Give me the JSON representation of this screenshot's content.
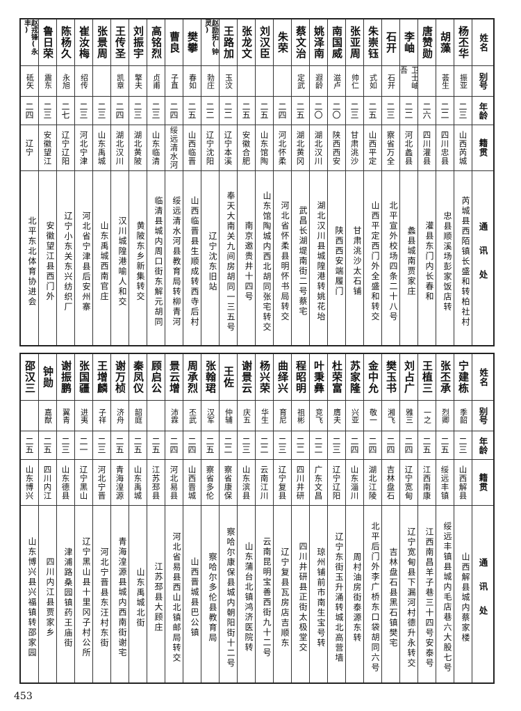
{
  "header": {
    "name": "姓名",
    "alias": "别号",
    "age": "年龄",
    "native": "籍贯",
    "address": "通讯处"
  },
  "top_rows": [
    [
      "杨丕华",
      "振亚",
      "二三",
      "山西芮城",
      "芮城县西陌镇长盛和转柏社村"
    ],
    [
      "胡藻",
      "荟生",
      "二二",
      "四川忠县",
      "忠县顺溪场彭家饭店转"
    ],
    [
      "唐赞勋",
      "",
      "二六",
      "四川灌县",
      "灌县东门内长春和"
    ],
    [
      "李岫",
      "卫士岫吾",
      "二二",
      "河北蠡县",
      "蠡县城南贾家庄"
    ],
    [
      "石开",
      "石开",
      "二三",
      "察省万全",
      "北平宣外校场四条二十八号"
    ],
    [
      "朱崇钰",
      "式如",
      "二五",
      "山西平定",
      "山西平定西门外全盛和转交"
    ],
    [
      "张亚周",
      "帅仁",
      "二三",
      "甘肃洮沙",
      "甘肃洮沙太石铺"
    ],
    [
      "南国威",
      "滋卢",
      "二〇",
      "陕西西安",
      "陕西西安端履门"
    ],
    [
      "姚泽南",
      "遐龄",
      "二〇",
      "湖北汉川",
      "湖北汉川县城隍港转姚花坮"
    ],
    [
      "蔡文治",
      "定武",
      "二五",
      "湖北黄冈",
      "武昌长湖堤南街二号蔡宅"
    ],
    [
      "朱荣",
      "",
      "二四",
      "河北怀柔",
      "河北省怀柔县明怀书局转交"
    ],
    [
      "刘汉臣",
      "",
      "二五",
      "山东馆陶",
      "山东馆陶城内西北胡同张宅转交"
    ],
    [
      "张龙文",
      "",
      "二五",
      "安徽合肥",
      "南京邀贵井十四号"
    ],
    [
      "王路加",
      "玉汶",
      "二二",
      "辽宁本溪",
      "奉天大南关九间房胡同一三五号"
    ],
    [
      "赵励拓(钟灵)",
      "勃庄",
      "二二",
      "辽宁沈阳",
      "辽宁沈东旧站"
    ],
    [
      "樊攀",
      "春如",
      "二五",
      "山西临晋",
      "山西临晋县生顺成转西寺后村"
    ],
    [
      "曹良",
      "子直",
      "二四",
      "绥远清水河",
      "绥远清水河县教育局转柳青河"
    ],
    [
      "高铭烈",
      "贞甫",
      "二三",
      "山东临清",
      "临清县城内周口街东解元胡同"
    ],
    [
      "刘振宇",
      "擎夫",
      "二三",
      "湖北黄陂",
      "黄陂东乡新集转交"
    ],
    [
      "王传圣",
      "凯章",
      "二四",
      "湖北汉川",
      "汉川城隍港喻人和交"
    ],
    [
      "张景周",
      "",
      "二三",
      "山东禹城",
      "山东禹城西南官庄"
    ],
    [
      "崔汝梅",
      "绍传",
      "二三",
      "河北宁津",
      "河北省宁津县后安州寨"
    ],
    [
      "陈杨久",
      "永旭",
      "二七",
      "辽宁辽阳",
      "辽宁小东关东兴纺织厂"
    ],
    [
      "鲁日荣",
      "震东",
      "二三",
      "安徽望江",
      "安徽望江县西门外"
    ],
    [
      "赵戎锋(永丰)",
      "砥矢",
      "二四",
      "辽宁",
      "北平东北体育协进会"
    ]
  ],
  "bottom_rows": [
    [
      "宁建栋",
      "季韶",
      "二三",
      "山西解县",
      "山西解县城内蔡家楼"
    ],
    [
      "张丕承",
      "烈卿",
      "二五",
      "绥远丰镇",
      "绥远丰镇县城内毛店巷六大股七号"
    ],
    [
      "王植三",
      "一之",
      "二五",
      "江西南康",
      "江西南昌羊子巷三十四号安泰号"
    ],
    [
      "刘占广",
      "雅三",
      "二四",
      "辽宁宽甸",
      "辽宁宽甸县下漏河村德升永转交"
    ],
    [
      "樊玉书",
      "湘飞",
      "二四",
      "吉林盘石",
      "吉林盘石县黑石镇樊宅"
    ],
    [
      "金中允",
      "敬一",
      "二四",
      "湖北江陵",
      "北平后门外李广桥东口袋胡同六号"
    ],
    [
      "苏家隆",
      "兴亚",
      "二四",
      "山东淄川",
      "周村油房街泰源东转"
    ],
    [
      "杜荣富",
      "膺夫",
      "二三",
      "辽宁辽阳",
      "辽宁东街玉升涌转城北高营墙"
    ],
    [
      "叶秉彝",
      "竞飞",
      "二二",
      "广东文昌",
      "琼州铺前市南生宝号转"
    ],
    [
      "程昭明",
      "祖彬",
      "二二",
      "四川井研",
      "四川井研县正街太极堂交"
    ],
    [
      "曲绎兴",
      "育尼",
      "二三",
      "辽宁复县",
      "辽宁复县瓦房店吉顺东"
    ],
    [
      "杨兴荣",
      "华生",
      "二二",
      "云南江川",
      "云南昆明宝善西街九十二号"
    ],
    [
      "谢景云",
      "庆五",
      "二三",
      "山东滨县",
      "山东蒲台北镇鸿济医院转"
    ],
    [
      "王佐",
      "仲辅",
      "二二",
      "察省康保",
      "察哈尔康保县城内朝阳街十二号"
    ],
    [
      "张翰珺",
      "汉军",
      "二五",
      "察省多伦",
      "察哈尔多伦县教育局"
    ],
    [
      "周承烈",
      "丕武",
      "二四",
      "山西晋城",
      "山西晋城县巴公镇"
    ],
    [
      "景云增",
      "沛霖",
      "二四",
      "河北易县",
      "河北省易县西山北镇邮局转交"
    ],
    [
      "顾启公",
      "",
      "二五",
      "江苏邳县",
      "江苏邳县大顾庄"
    ],
    [
      "秦凤仪",
      "韶庭",
      "二五",
      "山东禹城",
      "山东禹城北街"
    ],
    [
      "谢万桢",
      "济舟",
      "二五",
      "青海湟源",
      "青海湟源县城内西南街谢宅"
    ],
    [
      "王增麟",
      "子祥",
      "二三",
      "河北宁晋",
      "河北宁晋县东汪村东街"
    ],
    [
      "张国疆",
      "进夷",
      "二一",
      "辽宁黑山",
      "辽宁黑山县十里冈子村公所"
    ],
    [
      "谢振鹏",
      "翼青",
      "二三",
      "山东德县",
      "津浦路桑园镇药王庙街"
    ],
    [
      "钟勋",
      "嘉猷",
      "二五",
      "四川内江",
      "四川内江县贾家乡"
    ],
    [
      "邵汉三",
      "",
      "二五",
      "山东博兴",
      "山东博兴县兴福镇转邵家园"
    ]
  ],
  "page_number": "453"
}
